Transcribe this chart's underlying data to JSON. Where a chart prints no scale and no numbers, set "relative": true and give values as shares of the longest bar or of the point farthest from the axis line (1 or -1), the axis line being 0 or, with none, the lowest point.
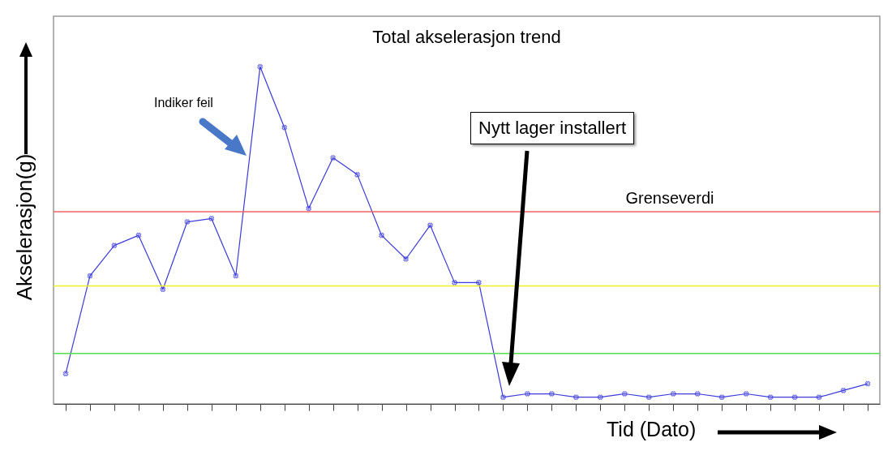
{
  "chart_data": {
    "type": "line",
    "title": "Total akselerasjon trend",
    "xlabel": "Tid (Dato)",
    "ylabel": "Akselerasjon(g)",
    "relative": true,
    "categories": [
      null,
      null,
      null,
      null,
      null,
      null,
      null,
      null,
      null,
      null,
      null,
      null,
      null,
      null,
      null,
      null,
      null,
      null,
      null,
      null,
      null,
      null,
      null,
      null,
      null,
      null,
      null,
      null,
      null,
      null,
      null,
      null,
      null,
      null
    ],
    "series": [
      {
        "color": "#3b3bdb",
        "values": [
          0.09,
          0.38,
          0.47,
          0.5,
          0.34,
          0.54,
          0.55,
          0.38,
          1,
          0.82,
          0.58,
          0.73,
          0.68,
          0.5,
          0.43,
          0.53,
          0.36,
          0.36,
          0.02,
          0.03,
          0.03,
          0.02,
          0.02,
          0.03,
          0.02,
          0.03,
          0.03,
          0.02,
          0.03,
          0.02,
          0.02,
          0.02,
          0.04,
          0.06
        ]
      }
    ],
    "ref_lines": [
      {
        "axis": "y",
        "value": 0.57,
        "label": "Grenseverdi",
        "color": "#f06060"
      },
      {
        "axis": "y",
        "value": 0.35,
        "label": null,
        "color": "#f0f020"
      },
      {
        "axis": "y",
        "value": 0.15,
        "label": null,
        "color": "#50e050"
      }
    ],
    "annotations": [
      "Indiker feil",
      "Nytt lager installert"
    ],
    "marker": "cross",
    "line_style": "solid"
  }
}
